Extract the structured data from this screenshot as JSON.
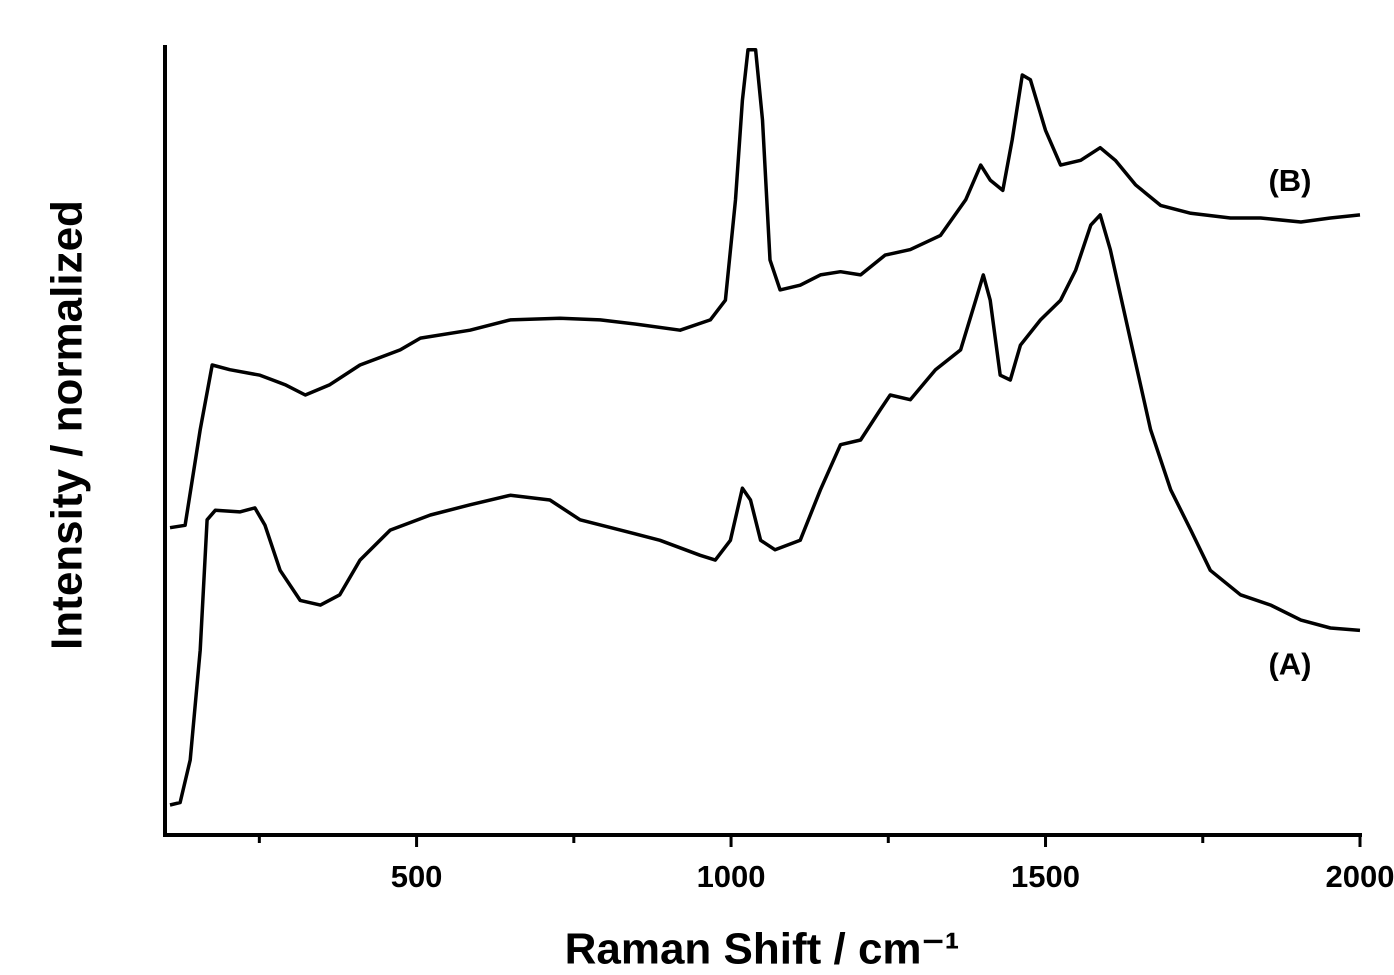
{
  "chart_data": {
    "type": "line",
    "x_label": "Raman Shift / cm⁻¹",
    "y_label": "Intensity / normalized",
    "xlim": [
      100,
      2000
    ],
    "xticks": [
      500,
      1000,
      1500,
      2000
    ],
    "xminorticks": [
      250,
      750,
      1250,
      1750
    ],
    "ylim": [
      0,
      100
    ],
    "series": [
      {
        "name": "(A)",
        "color": "#000000",
        "x": [
          108,
          124,
          140,
          156,
          167,
          180,
          219,
          243,
          259,
          283,
          315,
          347,
          378,
          410,
          458,
          522,
          585,
          649,
          712,
          760,
          824,
          887,
          951,
          975,
          999,
          1018,
          1031,
          1047,
          1070,
          1110,
          1142,
          1174,
          1206,
          1237,
          1253,
          1285,
          1325,
          1365,
          1389,
          1401,
          1412,
          1428,
          1444,
          1460,
          1492,
          1524,
          1548,
          1572,
          1587,
          1603,
          1635,
          1667,
          1699,
          1731,
          1762,
          1810,
          1858,
          1906,
          1953,
          2000
        ],
        "values": [
          3.8,
          4.1,
          9.5,
          23.4,
          39.9,
          41.1,
          40.9,
          41.4,
          39.2,
          33.5,
          29.7,
          29.1,
          30.4,
          34.8,
          38.6,
          40.5,
          41.8,
          43.0,
          42.4,
          39.9,
          38.6,
          37.3,
          35.4,
          34.8,
          37.3,
          43.9,
          42.4,
          37.3,
          36.1,
          37.3,
          43.7,
          49.4,
          50.0,
          53.8,
          55.7,
          55.1,
          58.9,
          61.4,
          67.7,
          70.9,
          67.7,
          58.2,
          57.6,
          62.0,
          65.2,
          67.7,
          71.5,
          77.2,
          78.5,
          74.1,
          62.7,
          51.3,
          43.7,
          38.6,
          33.5,
          30.4,
          29.1,
          27.2,
          26.2,
          25.9
        ]
      },
      {
        "name": "(B)",
        "color": "#000000",
        "x": [
          108,
          132,
          156,
          175,
          203,
          251,
          291,
          323,
          362,
          410,
          474,
          506,
          585,
          649,
          728,
          792,
          856,
          919,
          967,
          991,
          1007,
          1018,
          1027,
          1039,
          1050,
          1062,
          1078,
          1110,
          1142,
          1174,
          1206,
          1245,
          1285,
          1333,
          1373,
          1397,
          1412,
          1432,
          1447,
          1463,
          1476,
          1500,
          1524,
          1556,
          1587,
          1611,
          1643,
          1683,
          1731,
          1794,
          1842,
          1906,
          1953,
          2000
        ],
        "values": [
          38.9,
          39.2,
          51.3,
          59.5,
          58.9,
          58.2,
          57.0,
          55.7,
          57.0,
          59.5,
          61.4,
          62.9,
          63.9,
          65.2,
          65.4,
          65.2,
          64.6,
          63.9,
          65.2,
          67.7,
          80.4,
          93.0,
          99.4,
          99.4,
          90.5,
          72.8,
          69.0,
          69.6,
          70.9,
          71.3,
          70.9,
          73.4,
          74.1,
          75.9,
          80.4,
          84.8,
          82.9,
          81.6,
          88.0,
          96.2,
          95.6,
          89.2,
          84.8,
          85.4,
          87.0,
          85.4,
          82.3,
          79.7,
          78.7,
          78.1,
          78.1,
          77.6,
          78.1,
          78.5
        ]
      }
    ]
  }
}
